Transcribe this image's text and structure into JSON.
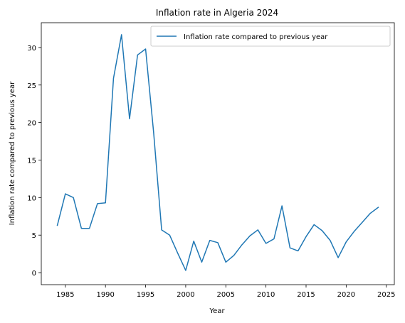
{
  "chart_data": {
    "type": "line",
    "title": "Inflation rate in Algeria 2024",
    "xlabel": "Year",
    "ylabel": "Inflation rate compared to previous year",
    "xlim": [
      1982,
      2026
    ],
    "ylim": [
      -1.6,
      33.3
    ],
    "xticks": [
      1985,
      1990,
      1995,
      2000,
      2005,
      2010,
      2015,
      2020,
      2025
    ],
    "yticks": [
      0,
      5,
      10,
      15,
      20,
      25,
      30
    ],
    "grid": false,
    "legend_position": "upper right",
    "series": [
      {
        "name": "Inflation rate compared to previous year",
        "color": "#1f77b4",
        "x": [
          1984,
          1985,
          1986,
          1987,
          1988,
          1989,
          1990,
          1991,
          1992,
          1993,
          1994,
          1995,
          1996,
          1997,
          1998,
          1999,
          2000,
          2001,
          2002,
          2003,
          2004,
          2005,
          2006,
          2007,
          2008,
          2009,
          2010,
          2011,
          2012,
          2013,
          2014,
          2015,
          2016,
          2017,
          2018,
          2019,
          2020,
          2021,
          2022,
          2023,
          2024
        ],
        "values": [
          6.3,
          10.5,
          10.0,
          5.9,
          5.9,
          9.2,
          9.3,
          25.9,
          31.7,
          20.5,
          29.0,
          29.8,
          18.7,
          5.7,
          5.0,
          2.6,
          0.3,
          4.2,
          1.4,
          4.3,
          4.0,
          1.4,
          2.3,
          3.7,
          4.9,
          5.7,
          3.9,
          4.5,
          8.9,
          3.3,
          2.9,
          4.8,
          6.4,
          5.6,
          4.3,
          2.0,
          4.1,
          5.5,
          6.7,
          7.9,
          8.7
        ]
      }
    ]
  }
}
